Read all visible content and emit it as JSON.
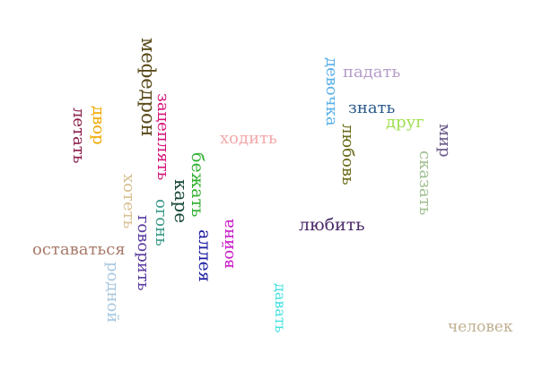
{
  "words": {
    "mefedron": {
      "text": "мефедрон",
      "color": "#5a4a1a"
    },
    "dvor": {
      "text": "двор",
      "color": "#f0a800"
    },
    "letat": {
      "text": "летать",
      "color": "#8a1c4a"
    },
    "zatseplyat": {
      "text": "зацеплять",
      "color": "#d4147a"
    },
    "khodit": {
      "text": "ходить",
      "color": "#f4a8a8"
    },
    "devochka": {
      "text": "девочка",
      "color": "#5ab0e8"
    },
    "padat": {
      "text": "падать",
      "color": "#b49cc8"
    },
    "znat": {
      "text": "знать",
      "color": "#2a5a8c"
    },
    "drug": {
      "text": "друг",
      "color": "#a0e050"
    },
    "mir": {
      "text": "мир",
      "color": "#6a5a88"
    },
    "lyubov": {
      "text": "любовь",
      "color": "#6a6a1a"
    },
    "skazat": {
      "text": "сказать",
      "color": "#a0c090"
    },
    "bezhat": {
      "text": "бежать",
      "color": "#30b030"
    },
    "kare": {
      "text": "каре",
      "color": "#1a4a3a"
    },
    "khotet": {
      "text": "хотеть",
      "color": "#d8c090"
    },
    "ogon": {
      "text": "огонь",
      "color": "#3a9a8a"
    },
    "govorit": {
      "text": "говорить",
      "color": "#5a3aa0"
    },
    "alleya": {
      "text": "аллея",
      "color": "#1a1aa0"
    },
    "voyna": {
      "text": "война",
      "color": "#c81ac8"
    },
    "lyubit": {
      "text": "любить",
      "color": "#4a2a6a"
    },
    "ostavatsya": {
      "text": "оставаться",
      "color": "#a87a6a"
    },
    "rodnoy": {
      "text": "родной",
      "color": "#a8c8e0"
    },
    "davat": {
      "text": "давать",
      "color": "#40e0e0"
    },
    "chelovek": {
      "text": "человек",
      "color": "#c0b090"
    }
  }
}
